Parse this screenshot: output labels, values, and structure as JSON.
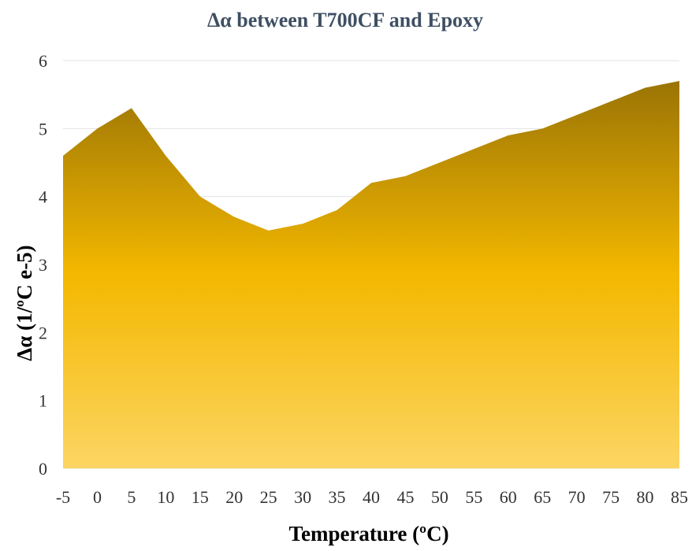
{
  "chart_data": {
    "type": "area",
    "title": "Δα between T700CF and Epoxy",
    "xlabel": "Temperature (ºC)",
    "ylabel": "Δα (1/ºC e-5)",
    "x": [
      -5,
      0,
      5,
      10,
      15,
      20,
      25,
      30,
      35,
      40,
      45,
      50,
      55,
      60,
      65,
      70,
      75,
      80,
      85
    ],
    "x_tick_labels": [
      "-5",
      "0",
      "5",
      "10",
      "15",
      "20",
      "25",
      "30",
      "35",
      "40",
      "45",
      "50",
      "55",
      "60",
      "65",
      "70",
      "75",
      "80",
      "85"
    ],
    "values": [
      4.6,
      5.0,
      5.3,
      4.6,
      4.0,
      3.7,
      3.5,
      3.6,
      3.8,
      4.2,
      4.3,
      4.5,
      4.7,
      4.9,
      5.0,
      5.2,
      5.4,
      5.6,
      5.7
    ],
    "ylim": [
      0,
      6
    ],
    "y_ticks": [
      0,
      1,
      2,
      3,
      4,
      5,
      6
    ],
    "grid": true,
    "legend": "none",
    "colors": {
      "fill_top": "#9a7405",
      "fill_mid": "#f4b800",
      "fill_bottom": "#fcd563",
      "grid": "#e2e2e2",
      "title": "#3f4f63"
    }
  }
}
